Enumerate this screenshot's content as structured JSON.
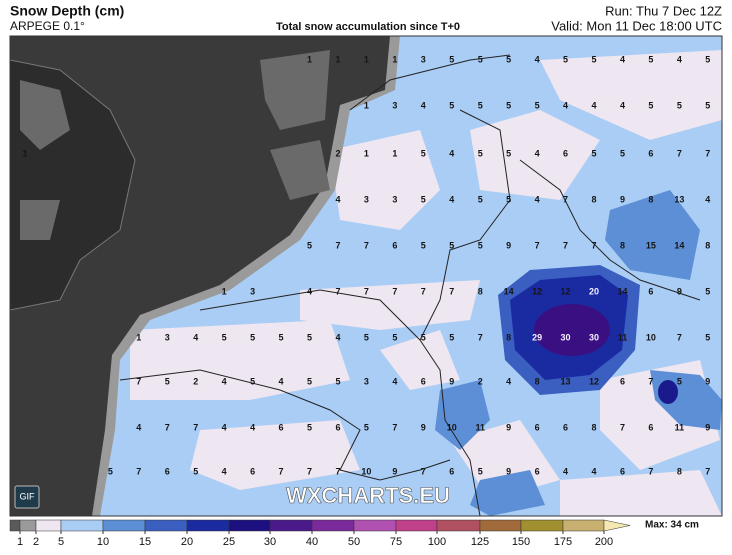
{
  "header": {
    "title": "Snow Depth (cm)",
    "model": "ARPEGE 0.1°",
    "subtitle": "Total snow accumulation since T+0",
    "run": "Run: Thu 7 Dec 12Z",
    "valid": "Valid: Mon 11 Dec 18:00 UTC"
  },
  "map": {
    "watermark": "WXCHARTS.EU",
    "gif_button": "GIF",
    "grid_labels": [
      [
        null,
        null,
        null,
        null,
        null,
        null,
        null,
        null,
        null,
        null,
        1,
        1,
        1,
        1,
        3,
        5,
        5,
        5,
        4,
        5,
        5,
        4,
        5,
        4,
        5
      ],
      [
        null,
        null,
        null,
        null,
        null,
        null,
        null,
        null,
        null,
        null,
        null,
        null,
        1,
        3,
        4,
        5,
        5,
        5,
        5,
        4,
        4,
        4,
        5,
        5,
        5
      ],
      [
        1,
        null,
        null,
        null,
        null,
        null,
        null,
        null,
        null,
        null,
        null,
        2,
        1,
        1,
        5,
        4,
        5,
        5,
        4,
        6,
        5,
        5,
        6,
        7,
        7
      ],
      [
        null,
        null,
        null,
        null,
        null,
        null,
        null,
        null,
        null,
        null,
        null,
        4,
        3,
        3,
        5,
        4,
        5,
        5,
        4,
        7,
        8,
        9,
        8,
        13,
        4
      ],
      [
        null,
        null,
        null,
        null,
        null,
        null,
        null,
        null,
        null,
        null,
        5,
        7,
        7,
        6,
        5,
        5,
        5,
        9,
        7,
        7,
        7,
        8,
        15,
        14,
        8
      ],
      [
        null,
        null,
        null,
        null,
        null,
        null,
        null,
        1,
        3,
        null,
        4,
        7,
        7,
        7,
        7,
        7,
        8,
        14,
        12,
        12,
        20,
        14,
        6,
        9,
        5
      ],
      [
        null,
        null,
        null,
        null,
        1,
        3,
        4,
        5,
        5,
        5,
        5,
        4,
        5,
        5,
        5,
        5,
        7,
        8,
        29,
        30,
        30,
        11,
        10,
        7,
        5
      ],
      [
        null,
        null,
        null,
        null,
        7,
        5,
        2,
        4,
        5,
        4,
        5,
        5,
        3,
        4,
        6,
        9,
        2,
        4,
        8,
        13,
        12,
        6,
        7,
        5,
        9
      ],
      [
        null,
        null,
        null,
        null,
        4,
        7,
        7,
        4,
        4,
        6,
        5,
        6,
        5,
        7,
        9,
        10,
        11,
        9,
        6,
        6,
        8,
        7,
        6,
        11,
        9
      ],
      [
        null,
        null,
        null,
        5,
        7,
        6,
        5,
        4,
        6,
        7,
        7,
        7,
        10,
        9,
        7,
        6,
        5,
        9,
        6,
        4,
        4,
        6,
        7,
        8,
        7
      ]
    ]
  },
  "legend": {
    "ticks": [
      1,
      2,
      5,
      10,
      15,
      20,
      25,
      30,
      40,
      50,
      75,
      100,
      125,
      150,
      175,
      200
    ],
    "colors": [
      "#5a5a5a",
      "#9a9a9a",
      "#eee6f0",
      "#a9cdf5",
      "#5d8fd6",
      "#3a5fc0",
      "#1a2aa0",
      "#1c1080",
      "#4a1a8a",
      "#7a2a9a",
      "#b050b0",
      "#c0408a",
      "#b05060",
      "#a06a3a",
      "#a09030",
      "#c8b070",
      "#f5e8b0"
    ],
    "max": "Max: 34 cm"
  }
}
